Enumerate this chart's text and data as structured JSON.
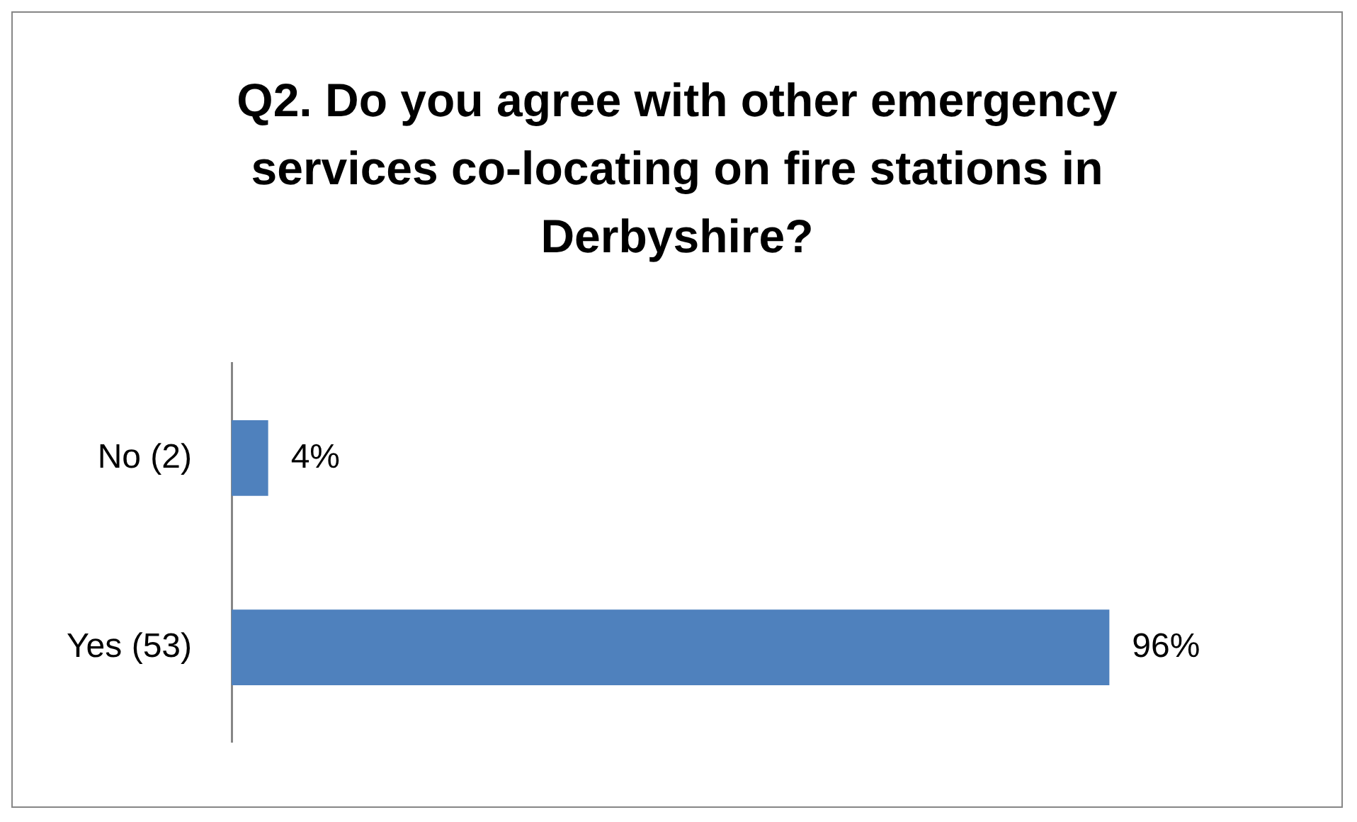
{
  "chart_data": {
    "type": "bar",
    "orientation": "horizontal",
    "title": "Q2. Do you agree with other emergency services co-locating on fire stations in Derbyshire?",
    "categories": [
      "No (2)",
      "Yes (53)"
    ],
    "values": [
      4,
      96
    ],
    "value_labels": [
      "4%",
      "96%"
    ],
    "color": "#4f81bd",
    "grid": false,
    "legend": false,
    "tick_labels": "y"
  }
}
